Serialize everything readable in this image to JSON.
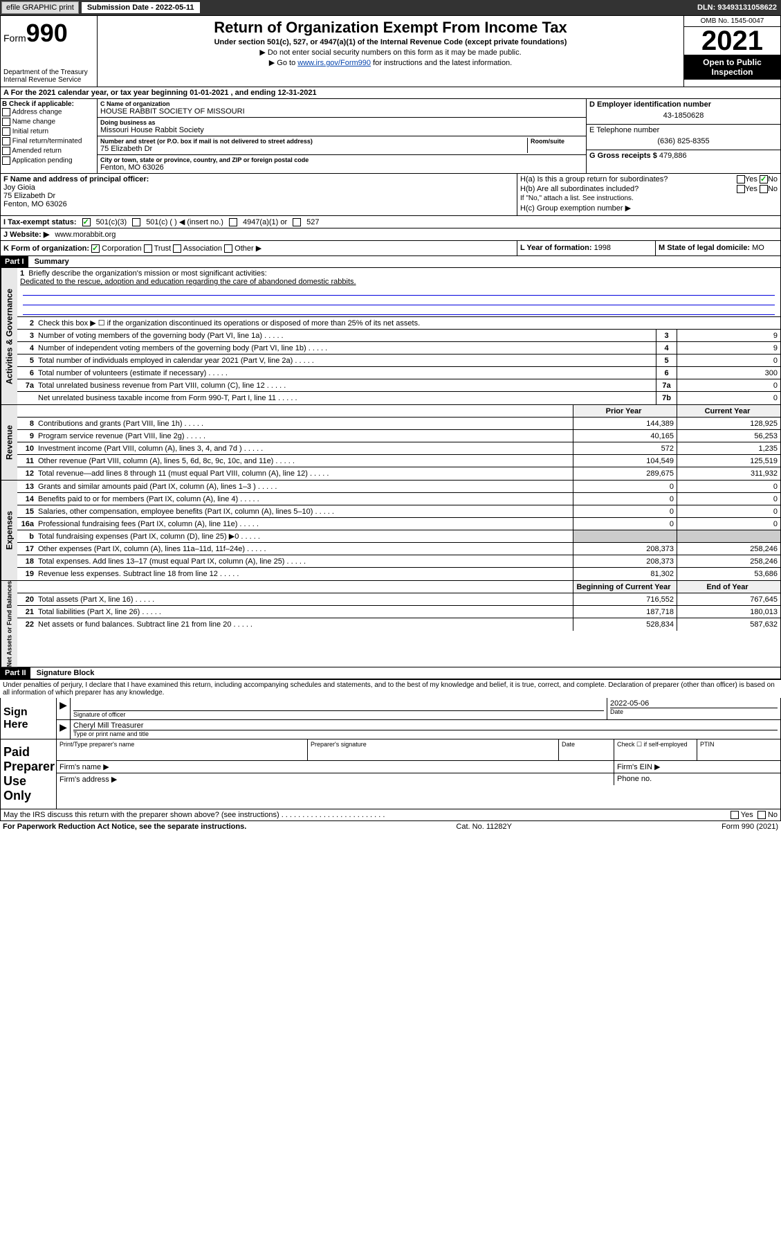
{
  "topbar": {
    "efile": "efile GRAPHIC print",
    "submission_label": "Submission Date - 2022-05-11",
    "dln": "DLN: 93493131058622"
  },
  "header": {
    "form_label": "Form",
    "form_num": "990",
    "dept": "Department of the Treasury\nInternal Revenue Service",
    "title": "Return of Organization Exempt From Income Tax",
    "sub1": "Under section 501(c), 527, or 4947(a)(1) of the Internal Revenue Code (except private foundations)",
    "sub2": "▶ Do not enter social security numbers on this form as it may be made public.",
    "sub3_pre": "▶ Go to ",
    "sub3_link": "www.irs.gov/Form990",
    "sub3_post": " for instructions and the latest information.",
    "omb": "OMB No. 1545-0047",
    "year": "2021",
    "openpub": "Open to Public Inspection"
  },
  "row_a": "A For the 2021 calendar year, or tax year beginning 01-01-2021   , and ending 12-31-2021",
  "col_b": {
    "title": "B Check if applicable:",
    "opts": [
      "Address change",
      "Name change",
      "Initial return",
      "Final return/terminated",
      "Amended return",
      "Application pending"
    ]
  },
  "col_c": {
    "name_lbl": "C Name of organization",
    "name": "HOUSE RABBIT SOCIETY OF MISSOURI",
    "dba_lbl": "Doing business as",
    "dba": "Missouri House Rabbit Society",
    "addr_lbl": "Number and street (or P.O. box if mail is not delivered to street address)",
    "room_lbl": "Room/suite",
    "addr": "75 Elizabeth Dr",
    "city_lbl": "City or town, state or province, country, and ZIP or foreign postal code",
    "city": "Fenton, MO  63026"
  },
  "col_d": {
    "ein_lbl": "D Employer identification number",
    "ein": "43-1850628",
    "tel_lbl": "E Telephone number",
    "tel": "(636) 825-8355",
    "gross_lbl": "G Gross receipts $",
    "gross": "479,886"
  },
  "sec_f": {
    "lbl": "F Name and address of principal officer:",
    "name": "Joy Gioia",
    "addr": "75 Elizabeth Dr\nFenton, MO  63026",
    "ha": "H(a)  Is this a group return for subordinates?",
    "hb": "H(b)  Are all subordinates included?",
    "hb_note": "If \"No,\" attach a list. See instructions.",
    "hc": "H(c)  Group exemption number ▶",
    "yes": "Yes",
    "no": "No"
  },
  "sec_i": {
    "lbl": "I    Tax-exempt status:",
    "o1": "501(c)(3)",
    "o2": "501(c) (   ) ◀ (insert no.)",
    "o3": "4947(a)(1) or",
    "o4": "527"
  },
  "sec_j": {
    "lbl": "J   Website: ▶",
    "val": "www.morabbit.org"
  },
  "sec_k": {
    "lbl": "K Form of organization:",
    "o1": "Corporation",
    "o2": "Trust",
    "o3": "Association",
    "o4": "Other ▶",
    "l_lbl": "L Year of formation:",
    "l_val": "1998",
    "m_lbl": "M State of legal domicile:",
    "m_val": "MO"
  },
  "part1": {
    "hdr": "Part I",
    "title": "Summary",
    "vert1": "Activities & Governance",
    "vert2": "Revenue",
    "vert3": "Expenses",
    "vert4": "Net Assets or Fund Balances",
    "l1": "Briefly describe the organization's mission or most significant activities:",
    "l1_text": "Dedicated to the rescue, adoption and education regarding the care of abandoned domestic rabbits.",
    "l2": "Check this box ▶ ☐ if the organization discontinued its operations or disposed of more than 25% of its net assets.",
    "lines_gov": [
      {
        "n": "3",
        "d": "Number of voting members of the governing body (Part VI, line 1a)",
        "b": "3",
        "v": "9"
      },
      {
        "n": "4",
        "d": "Number of independent voting members of the governing body (Part VI, line 1b)",
        "b": "4",
        "v": "9"
      },
      {
        "n": "5",
        "d": "Total number of individuals employed in calendar year 2021 (Part V, line 2a)",
        "b": "5",
        "v": "0"
      },
      {
        "n": "6",
        "d": "Total number of volunteers (estimate if necessary)",
        "b": "6",
        "v": "300"
      },
      {
        "n": "7a",
        "d": "Total unrelated business revenue from Part VIII, column (C), line 12",
        "b": "7a",
        "v": "0"
      },
      {
        "n": "",
        "d": "Net unrelated business taxable income from Form 990-T, Part I, line 11",
        "b": "7b",
        "v": "0"
      }
    ],
    "col_prior": "Prior Year",
    "col_curr": "Current Year",
    "lines_rev": [
      {
        "n": "8",
        "d": "Contributions and grants (Part VIII, line 1h)",
        "p": "144,389",
        "c": "128,925"
      },
      {
        "n": "9",
        "d": "Program service revenue (Part VIII, line 2g)",
        "p": "40,165",
        "c": "56,253"
      },
      {
        "n": "10",
        "d": "Investment income (Part VIII, column (A), lines 3, 4, and 7d )",
        "p": "572",
        "c": "1,235"
      },
      {
        "n": "11",
        "d": "Other revenue (Part VIII, column (A), lines 5, 6d, 8c, 9c, 10c, and 11e)",
        "p": "104,549",
        "c": "125,519"
      },
      {
        "n": "12",
        "d": "Total revenue—add lines 8 through 11 (must equal Part VIII, column (A), line 12)",
        "p": "289,675",
        "c": "311,932"
      }
    ],
    "lines_exp": [
      {
        "n": "13",
        "d": "Grants and similar amounts paid (Part IX, column (A), lines 1–3 )",
        "p": "0",
        "c": "0"
      },
      {
        "n": "14",
        "d": "Benefits paid to or for members (Part IX, column (A), line 4)",
        "p": "0",
        "c": "0"
      },
      {
        "n": "15",
        "d": "Salaries, other compensation, employee benefits (Part IX, column (A), lines 5–10)",
        "p": "0",
        "c": "0"
      },
      {
        "n": "16a",
        "d": "Professional fundraising fees (Part IX, column (A), line 11e)",
        "p": "0",
        "c": "0"
      },
      {
        "n": "b",
        "d": "Total fundraising expenses (Part IX, column (D), line 25) ▶0",
        "p": "",
        "c": "",
        "shaded": true
      },
      {
        "n": "17",
        "d": "Other expenses (Part IX, column (A), lines 11a–11d, 11f–24e)",
        "p": "208,373",
        "c": "258,246"
      },
      {
        "n": "18",
        "d": "Total expenses. Add lines 13–17 (must equal Part IX, column (A), line 25)",
        "p": "208,373",
        "c": "258,246"
      },
      {
        "n": "19",
        "d": "Revenue less expenses. Subtract line 18 from line 12",
        "p": "81,302",
        "c": "53,686"
      }
    ],
    "col_beg": "Beginning of Current Year",
    "col_end": "End of Year",
    "lines_net": [
      {
        "n": "20",
        "d": "Total assets (Part X, line 16)",
        "p": "716,552",
        "c": "767,645"
      },
      {
        "n": "21",
        "d": "Total liabilities (Part X, line 26)",
        "p": "187,718",
        "c": "180,013"
      },
      {
        "n": "22",
        "d": "Net assets or fund balances. Subtract line 21 from line 20",
        "p": "528,834",
        "c": "587,632"
      }
    ]
  },
  "part2": {
    "hdr": "Part II",
    "title": "Signature Block",
    "penalty": "Under penalties of perjury, I declare that I have examined this return, including accompanying schedules and statements, and to the best of my knowledge and belief, it is true, correct, and complete. Declaration of preparer (other than officer) is based on all information of which preparer has any knowledge.",
    "sign_here": "Sign Here",
    "sig_officer": "Signature of officer",
    "sig_date": "2022-05-06",
    "date_lbl": "Date",
    "name_title": "Cheryl Mill Treasurer",
    "name_title_lbl": "Type or print name and title",
    "paid": "Paid Preparer Use Only",
    "prep_name": "Print/Type preparer's name",
    "prep_sig": "Preparer's signature",
    "prep_date": "Date",
    "check_self": "Check ☐ if self-employed",
    "ptin": "PTIN",
    "firm_name": "Firm's name   ▶",
    "firm_ein": "Firm's EIN ▶",
    "firm_addr": "Firm's address ▶",
    "phone": "Phone no.",
    "may_irs": "May the IRS discuss this return with the preparer shown above? (see instructions)",
    "yes": "Yes",
    "no": "No"
  },
  "footer": {
    "left": "For Paperwork Reduction Act Notice, see the separate instructions.",
    "mid": "Cat. No. 11282Y",
    "right": "Form 990 (2021)"
  }
}
